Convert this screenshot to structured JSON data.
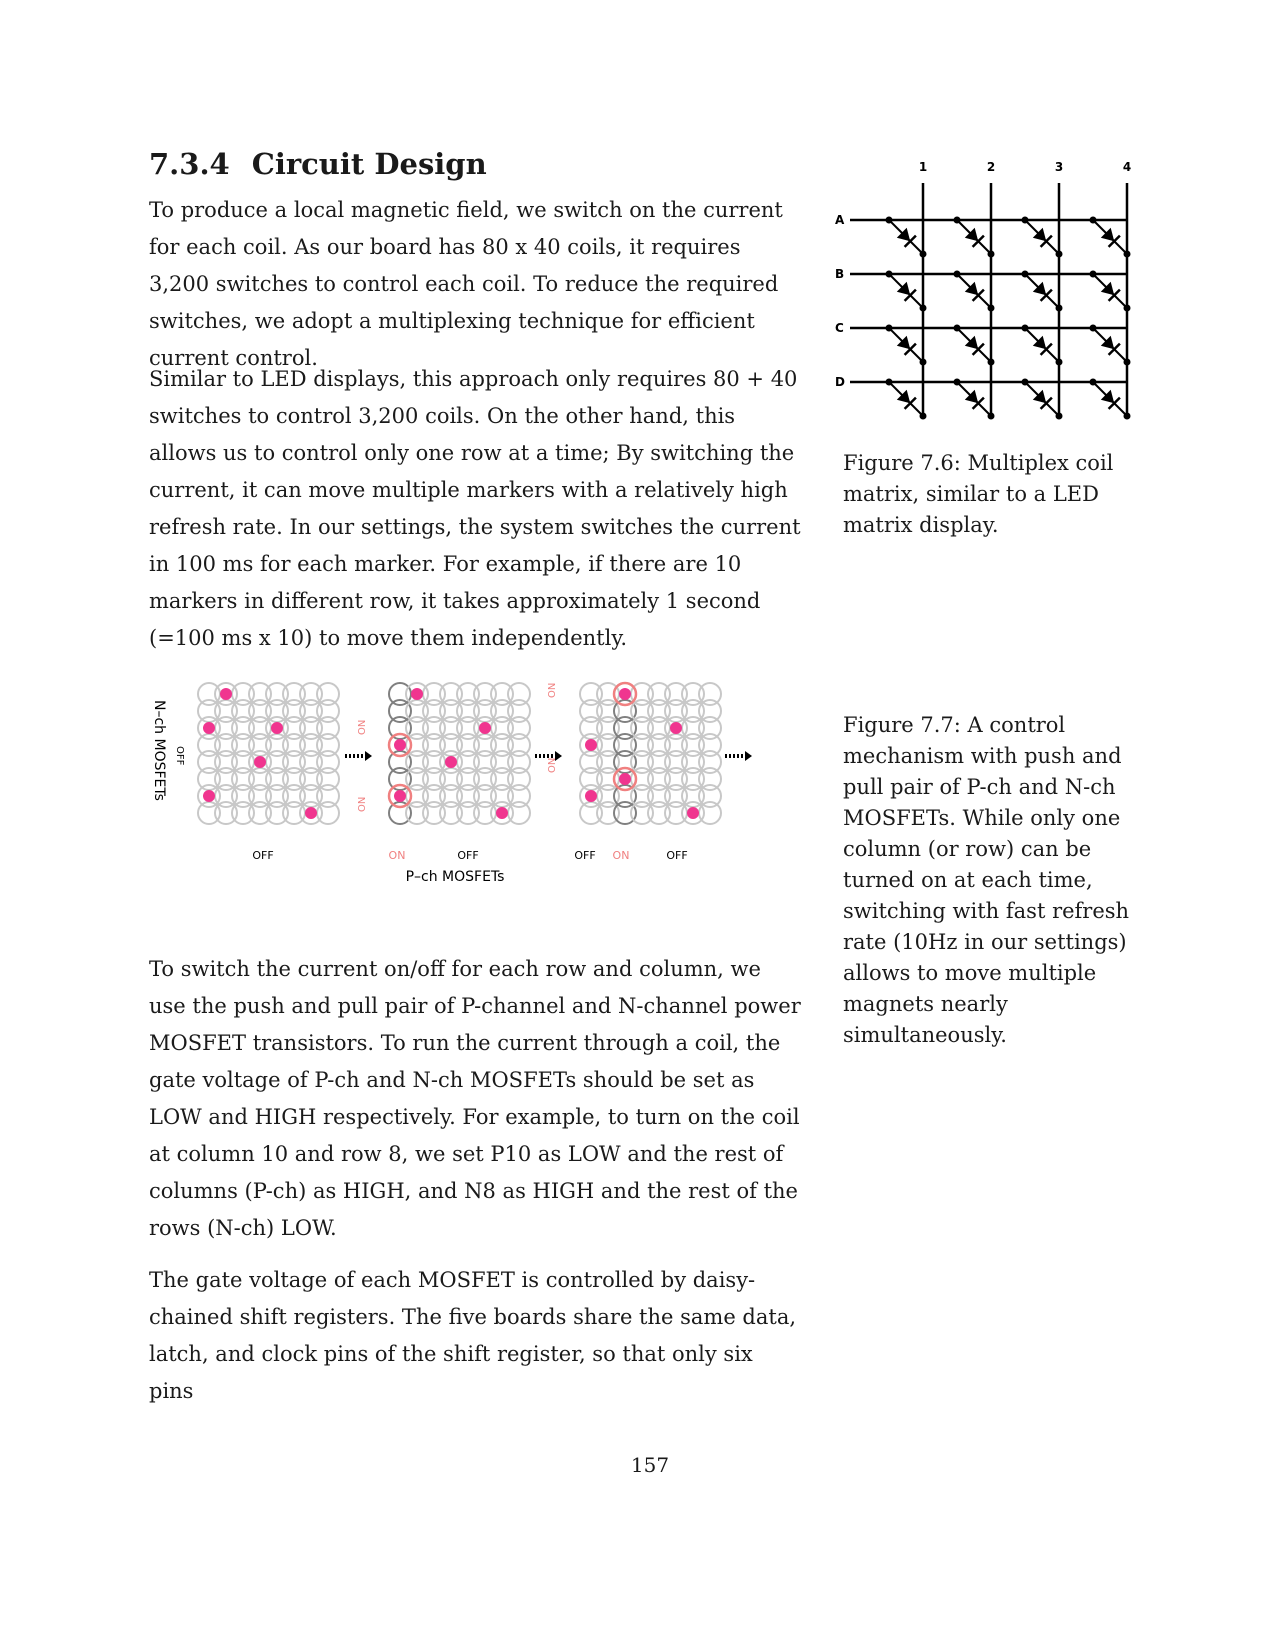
{
  "section": {
    "number": "7.3.4",
    "title": "Circuit Design"
  },
  "paragraphs": [
    "To produce a local magnetic field, we switch on the current for each coil. As our board has 80 x 40 coils, it requires 3,200 switches to control each coil. To reduce the required switches, we adopt a multiplexing technique for efficient current control.",
    "Similar to LED displays, this approach only requires 80 + 40 switches to control 3,200 coils. On the other hand, this allows us to control only one row at a time; By switching the current, it can move multiple markers with a relatively high refresh rate. In our settings, the system switches the current in 100 ms for each marker. For example, if there are 10 markers in different row, it takes approximately 1 second (=100 ms x 10) to move them independently.",
    "To switch the current on/off for each row and column, we use the push and pull pair of P-channel and N-channel power MOSFET transistors. To run the current through a coil, the gate voltage of P-ch and N-ch MOSFETs should be set as LOW and HIGH respectively. For example, to turn on the coil at column 10 and row 8, we set P10 as LOW and the rest of columns (P-ch) as HIGH, and N8 as HIGH and the rest of the rows (N-ch) LOW.",
    "The gate voltage of each MOSFET is controlled by daisy-chained shift registers. The five boards share the same data, latch, and clock pins of the shift register, so that only six pins"
  ],
  "figure_7_6": {
    "caption": "Figure 7.6: Multiplex coil matrix, similar to a LED matrix display.",
    "column_labels": [
      "1",
      "2",
      "3",
      "4"
    ],
    "row_labels": [
      "A",
      "B",
      "C",
      "D"
    ]
  },
  "figure_7_7": {
    "caption": "Figure 7.7: A control mechanism with push and pull pair of P-ch and N-ch MOSFETs. While only one column (or row) can be turned on at each time, switching with fast refresh rate (10Hz in our settings) allows to move multiple magnets nearly simultaneously.",
    "n_axis_label": "N–ch MOSFETs",
    "p_axis_label": "P–ch MOSFETs",
    "off_label": "OFF",
    "on_label": "ON",
    "colors": {
      "marker": "#f0358f",
      "on": "#f08080",
      "coil": "#c8c8c8",
      "active_coil": "#808080"
    }
  },
  "page_number": "157"
}
